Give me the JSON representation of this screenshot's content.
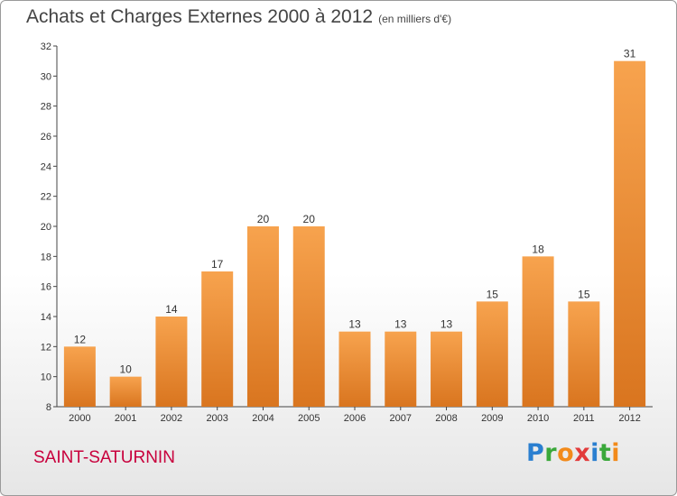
{
  "header": {
    "title": "Achats et Charges Externes 2000 à 2012",
    "subtitle": "(en milliers d'€)"
  },
  "footer": {
    "commune": "SAINT-SATURNIN",
    "brand": "Proxiti"
  },
  "colors": {
    "bar_light": "#f7a34e",
    "bar_dark": "#d9751f",
    "commune": "#c8003c",
    "axis": "#444444"
  },
  "chart_data": {
    "type": "bar",
    "title": "Achats et Charges Externes 2000 à 2012",
    "subtitle": "(en milliers d'€)",
    "categories": [
      "2000",
      "2001",
      "2002",
      "2003",
      "2004",
      "2005",
      "2006",
      "2007",
      "2008",
      "2009",
      "2010",
      "2011",
      "2012"
    ],
    "values": [
      12,
      10,
      14,
      17,
      20,
      20,
      13,
      13,
      13,
      15,
      18,
      15,
      31
    ],
    "ylim": [
      8,
      32
    ],
    "yticks": [
      8,
      10,
      12,
      14,
      16,
      18,
      20,
      22,
      24,
      26,
      28,
      30,
      32
    ],
    "grid": false,
    "legend": "none",
    "data_labels": true
  }
}
